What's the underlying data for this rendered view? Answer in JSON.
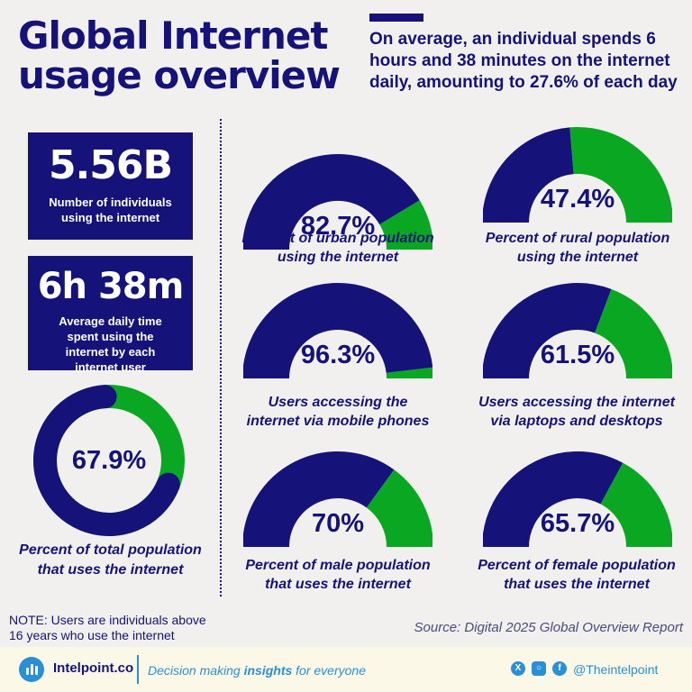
{
  "colors": {
    "navy": "#15127a",
    "green": "#0aa822",
    "blue": "#2b8fd6",
    "background": "#f1f0ee"
  },
  "header": {
    "title_line1": "Global Internet",
    "title_line2": "usage overview",
    "subtitle": "On average, an individual spends 6 hours and 38 minutes on the internet daily, amounting to 27.6% of each day"
  },
  "stats": [
    {
      "value": "5.56B",
      "label": "Number of individuals using the internet"
    },
    {
      "value": "6h 38m",
      "label": "Average daily time spent using the internet by each internet user"
    }
  ],
  "chart_data": [
    {
      "type": "pie",
      "style": "donut",
      "value": 67.9,
      "value_label": "67.9%",
      "caption": "Percent of total population that uses the internet"
    },
    {
      "type": "pie",
      "style": "half-gauge",
      "value": 82.7,
      "value_label": "82.7%",
      "caption_line1": "Percent of urban population",
      "caption_line2": "using the internet"
    },
    {
      "type": "pie",
      "style": "half-gauge",
      "value": 47.4,
      "value_label": "47.4%",
      "caption_line1": "Percent of rural population",
      "caption_line2": "using the internet"
    },
    {
      "type": "pie",
      "style": "half-gauge",
      "value": 96.3,
      "value_label": "96.3%",
      "caption_line1": "Users accessing the",
      "caption_line2": "internet via mobile phones"
    },
    {
      "type": "pie",
      "style": "half-gauge",
      "value": 61.5,
      "value_label": "61.5%",
      "caption_line1": "Users accessing the internet",
      "caption_line2": "via laptops and desktops"
    },
    {
      "type": "pie",
      "style": "half-gauge",
      "value": 70,
      "value_label": "70%",
      "caption_line1": "Percent of male population",
      "caption_line2": "that uses the internet"
    },
    {
      "type": "pie",
      "style": "half-gauge",
      "value": 65.7,
      "value_label": "65.7%",
      "caption_line1": "Percent of female population",
      "caption_line2": "that uses the internet"
    }
  ],
  "note": {
    "line1": "NOTE: Users are individuals above",
    "line2": "16 years who use the internet"
  },
  "source": "Source: Digital 2025 Global Overview Report",
  "footer": {
    "brand": "Intelpoint.co",
    "tagline_pre": "Decision making ",
    "tagline_bold": "insights",
    "tagline_post": " for everyone",
    "handle": "@Theintelpoint",
    "icons": [
      "x-icon",
      "instagram-icon",
      "facebook-icon"
    ]
  }
}
